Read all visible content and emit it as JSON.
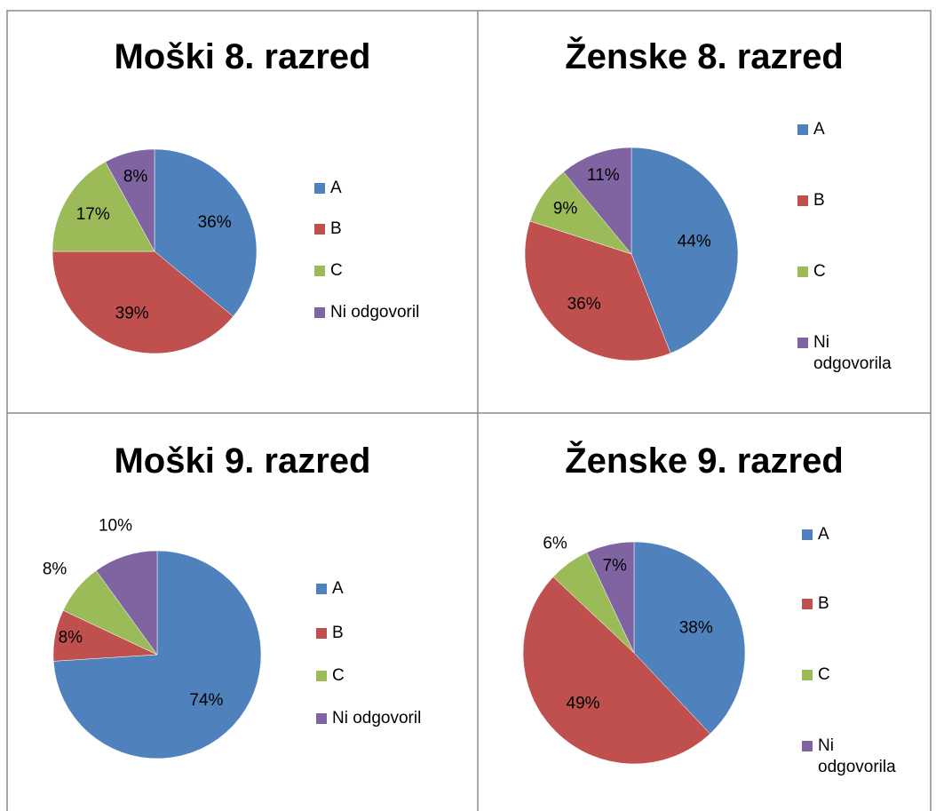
{
  "chart_data": [
    {
      "type": "pie",
      "title": "Moški 8. razred",
      "categories": [
        "A",
        "B",
        "C",
        "Ni odgovoril"
      ],
      "values": [
        36,
        39,
        17,
        8
      ],
      "value_labels": [
        "36%",
        "39%",
        "17%",
        "8%"
      ],
      "colors": [
        "#4f81bd",
        "#c0504d",
        "#9bbb59",
        "#8064a2"
      ]
    },
    {
      "type": "pie",
      "title": "Ženske 8. razred",
      "categories": [
        "A",
        "B",
        "C",
        "Ni odgovorila"
      ],
      "values": [
        44,
        36,
        9,
        11
      ],
      "value_labels": [
        "44%",
        "36%",
        "9%",
        "11%"
      ],
      "colors": [
        "#4f81bd",
        "#c0504d",
        "#9bbb59",
        "#8064a2"
      ]
    },
    {
      "type": "pie",
      "title": "Moški 9. razred",
      "categories": [
        "A",
        "B",
        "C",
        "Ni odgovoril"
      ],
      "values": [
        74,
        8,
        8,
        10
      ],
      "value_labels": [
        "74%",
        "8%",
        "8%",
        "10%"
      ],
      "colors": [
        "#4f81bd",
        "#c0504d",
        "#9bbb59",
        "#8064a2"
      ]
    },
    {
      "type": "pie",
      "title": "Ženske 9. razred",
      "categories": [
        "A",
        "B",
        "C",
        "Ni odgovorila"
      ],
      "values": [
        38,
        49,
        6,
        7
      ],
      "value_labels": [
        "38%",
        "49%",
        "6%",
        "7%"
      ],
      "colors": [
        "#4f81bd",
        "#c0504d",
        "#9bbb59",
        "#8064a2"
      ]
    }
  ]
}
